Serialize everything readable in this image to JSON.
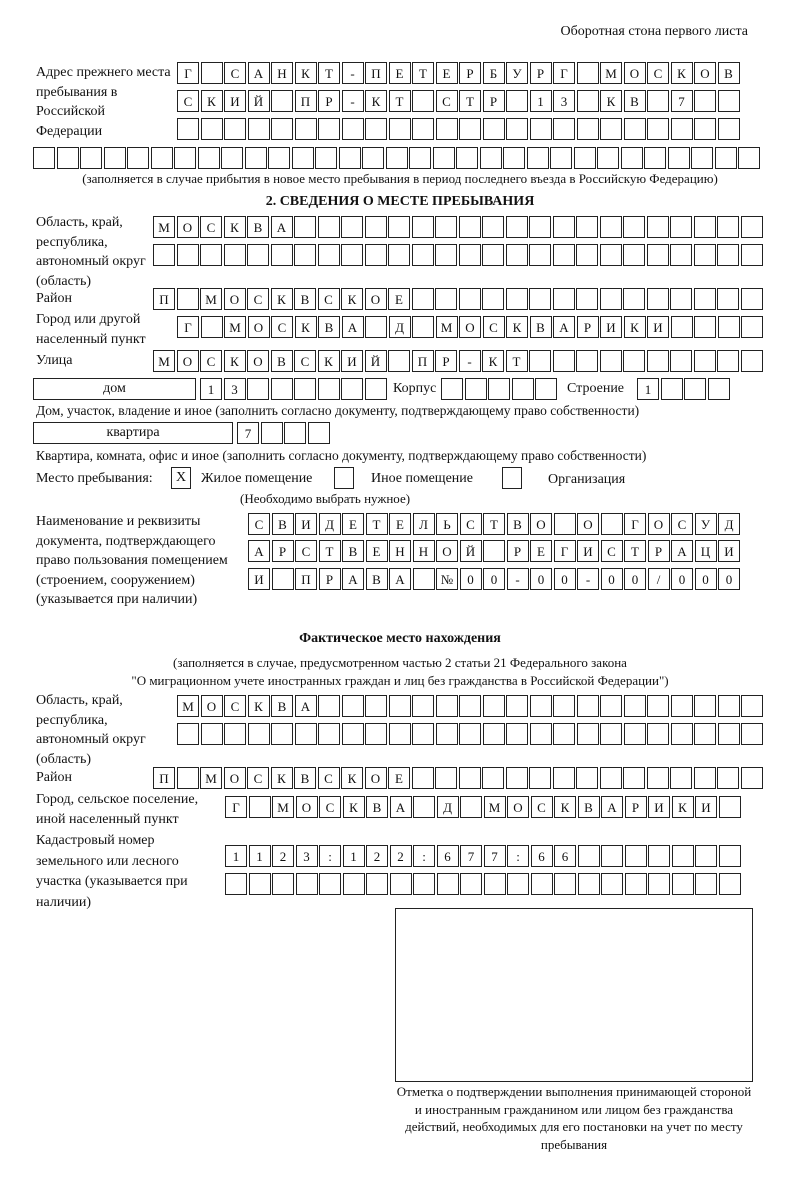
{
  "header": "Оборотная стона первого листа",
  "prev_address": {
    "label": "Адрес прежнего места пребывания в Российской Федерации",
    "rows": [
      [
        "Г",
        "",
        "С",
        "А",
        "Н",
        "К",
        "Т",
        "-",
        "П",
        "Е",
        "Т",
        "Е",
        "Р",
        "Б",
        "У",
        "Р",
        "Г",
        "",
        "М",
        "О",
        "С",
        "К",
        "О",
        "В"
      ],
      [
        "С",
        "К",
        "И",
        "Й",
        "",
        "П",
        "Р",
        "-",
        "К",
        "Т",
        "",
        "С",
        "Т",
        "Р",
        "",
        "1",
        "3",
        "",
        "К",
        "В",
        "",
        "7",
        "",
        ""
      ],
      [
        "",
        "",
        "",
        "",
        "",
        "",
        "",
        "",
        "",
        "",
        "",
        "",
        "",
        "",
        "",
        "",
        "",
        "",
        "",
        "",
        "",
        "",
        "",
        ""
      ],
      [
        "",
        "",
        "",
        "",
        "",
        "",
        "",
        "",
        "",
        "",
        "",
        "",
        "",
        "",
        "",
        "",
        "",
        "",
        "",
        "",
        "",
        "",
        "",
        "",
        "",
        "",
        "",
        "",
        "",
        "",
        ""
      ]
    ],
    "note": "(заполняется в случае прибытия в новое место пребывания в период последнего въезда в Российскую Федерацию)"
  },
  "section2": {
    "title": "2. СВЕДЕНИЯ О МЕСТЕ ПРЕБЫВАНИЯ",
    "region_label": "Область, край, республика, автономный округ (область)",
    "region_rows": [
      [
        "М",
        "О",
        "С",
        "К",
        "В",
        "А",
        "",
        "",
        "",
        "",
        "",
        "",
        "",
        "",
        "",
        "",
        "",
        "",
        "",
        "",
        "",
        "",
        "",
        "",
        "",
        ""
      ],
      [
        "",
        "",
        "",
        "",
        "",
        "",
        "",
        "",
        "",
        "",
        "",
        "",
        "",
        "",
        "",
        "",
        "",
        "",
        "",
        "",
        "",
        "",
        "",
        "",
        "",
        ""
      ]
    ],
    "district_label": "Район",
    "district": [
      "П",
      "",
      "М",
      "О",
      "С",
      "К",
      "В",
      "С",
      "К",
      "О",
      "Е",
      "",
      "",
      "",
      "",
      "",
      "",
      "",
      "",
      "",
      "",
      "",
      "",
      "",
      "",
      ""
    ],
    "city_label": "Город или другой населенный пункт",
    "city": [
      "Г",
      "",
      "М",
      "О",
      "С",
      "К",
      "В",
      "А",
      "",
      "Д",
      "",
      "М",
      "О",
      "С",
      "К",
      "В",
      "А",
      "Р",
      "И",
      "К",
      "И",
      "",
      "",
      "",
      ""
    ],
    "street_label": "Улица",
    "street": [
      "М",
      "О",
      "С",
      "К",
      "О",
      "В",
      "С",
      "К",
      "И",
      "Й",
      "",
      "П",
      "Р",
      "-",
      "К",
      "Т",
      "",
      "",
      "",
      "",
      "",
      "",
      "",
      "",
      "",
      ""
    ],
    "house_type": "дом",
    "house": [
      "1",
      "3",
      "",
      "",
      "",
      "",
      "",
      ""
    ],
    "korpus_label": "Корпус",
    "korpus": [
      "",
      "",
      "",
      "",
      ""
    ],
    "building_label": "Строение",
    "building": [
      "1",
      "",
      "",
      ""
    ],
    "house_note": "Дом, участок, владение и иное (заполнить согласно документу, подтверждающему право собственности)",
    "flat_type": "квартира",
    "flat": [
      "7",
      "",
      "",
      ""
    ],
    "flat_note": "Квартира, комната, офис и иное (заполнить согласно документу, подтверждающему право собственности)",
    "place_label": "Место пребывания:",
    "place_options": [
      {
        "label": "Жилое помещение",
        "mark": "X"
      },
      {
        "label": "Иное помещение",
        "mark": ""
      },
      {
        "label": "Организация",
        "mark": ""
      }
    ],
    "place_note": "(Необходимо выбрать нужное)",
    "doc_label": "Наименование и реквизиты документа, подтверждающего право пользования помещением (строением, сооружением) (указывается при наличии)",
    "doc_rows": [
      [
        "С",
        "В",
        "И",
        "Д",
        "Е",
        "Т",
        "Е",
        "Л",
        "Ь",
        "С",
        "Т",
        "В",
        "О",
        "",
        "О",
        "",
        "Г",
        "О",
        "С",
        "У",
        "Д"
      ],
      [
        "А",
        "Р",
        "С",
        "Т",
        "В",
        "Е",
        "Н",
        "Н",
        "О",
        "Й",
        "",
        "Р",
        "Е",
        "Г",
        "И",
        "С",
        "Т",
        "Р",
        "А",
        "Ц",
        "И"
      ],
      [
        "И",
        "",
        "П",
        "Р",
        "А",
        "В",
        "А",
        "",
        "№",
        "0",
        "0",
        "-",
        "0",
        "0",
        "-",
        "0",
        "0",
        "/",
        "0",
        "0",
        "0"
      ]
    ]
  },
  "actual": {
    "title": "Фактическое место нахождения",
    "sub1": "(заполняется в случае, предусмотренном частью 2 статьи 21 Федерального закона",
    "sub2": "\"О миграционном учете иностранных граждан и лиц без гражданства в Российской Федерации\")",
    "region_label": "Область, край, республика, автономный округ (область)",
    "region_rows": [
      [
        "М",
        "О",
        "С",
        "К",
        "В",
        "А",
        "",
        "",
        "",
        "",
        "",
        "",
        "",
        "",
        "",
        "",
        "",
        "",
        "",
        "",
        "",
        "",
        "",
        "",
        ""
      ],
      [
        "",
        "",
        "",
        "",
        "",
        "",
        "",
        "",
        "",
        "",
        "",
        "",
        "",
        "",
        "",
        "",
        "",
        "",
        "",
        "",
        "",
        "",
        "",
        "",
        ""
      ]
    ],
    "district_label": "Район",
    "district": [
      "П",
      "",
      "М",
      "О",
      "С",
      "К",
      "В",
      "С",
      "К",
      "О",
      "Е",
      "",
      "",
      "",
      "",
      "",
      "",
      "",
      "",
      "",
      "",
      "",
      "",
      "",
      "",
      ""
    ],
    "city_label": "Город, сельское поселение, иной населенный пункт",
    "city": [
      "Г",
      "",
      "М",
      "О",
      "С",
      "К",
      "В",
      "А",
      "",
      "Д",
      "",
      "М",
      "О",
      "С",
      "К",
      "В",
      "А",
      "Р",
      "И",
      "К",
      "И",
      ""
    ],
    "cadastral_label": "Кадастровый номер земельного или лесного участка (указывается при наличии)",
    "cadastral_rows": [
      [
        "1",
        "1",
        "2",
        "3",
        ":",
        "1",
        "2",
        "2",
        ":",
        "6",
        "7",
        "7",
        ":",
        "6",
        "6",
        "",
        "",
        "",
        "",
        "",
        "",
        ""
      ],
      [
        "",
        "",
        "",
        "",
        "",
        "",
        "",
        "",
        "",
        "",
        "",
        "",
        "",
        "",
        "",
        "",
        "",
        "",
        "",
        "",
        "",
        ""
      ]
    ]
  },
  "stamp_caption": "Отметка о подтверждении выполнения принимающей стороной и иностранным гражданином или лицом без гражданства действий, необходимых для его постановки на учет по месту пребывания"
}
